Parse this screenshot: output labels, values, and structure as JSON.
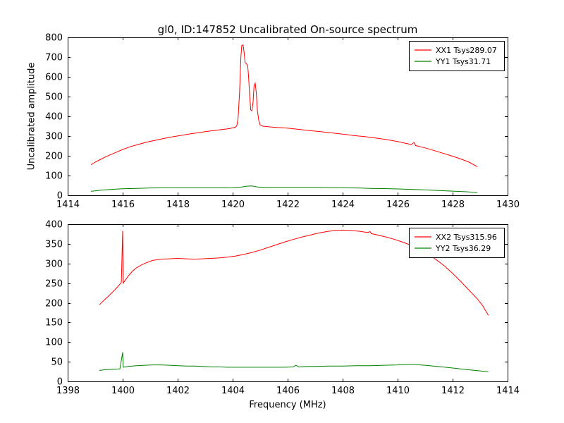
{
  "figure": {
    "title": "gl0, ID:147852 Uncalibrated On-source spectrum",
    "xlabel": "Frequency (MHz)",
    "ylabel": "Uncalibrated amplitude",
    "background_color": "#ffffff",
    "line_colors": {
      "xx": "#ff0000",
      "yy": "#008000"
    }
  },
  "chart_data": [
    {
      "type": "line",
      "name": "top-subplot",
      "title": "gl0, ID:147852 Uncalibrated On-source spectrum",
      "xlabel": "",
      "ylabel": "Uncalibrated amplitude",
      "xlim": [
        1414,
        1430
      ],
      "ylim": [
        0,
        800
      ],
      "xticks": [
        1414,
        1416,
        1418,
        1420,
        1422,
        1424,
        1426,
        1428,
        1430
      ],
      "yticks": [
        0,
        100,
        200,
        300,
        400,
        500,
        600,
        700,
        800
      ],
      "grid": false,
      "legend": {
        "position": "upper right"
      },
      "series": [
        {
          "name": "XX1 Tsys289.07",
          "color": "#ff0000",
          "points": [
            [
              1414.85,
              155
            ],
            [
              1415.0,
              168
            ],
            [
              1415.2,
              182
            ],
            [
              1415.4,
              196
            ],
            [
              1415.6,
              208
            ],
            [
              1415.8,
              220
            ],
            [
              1416.0,
              232
            ],
            [
              1416.3,
              247
            ],
            [
              1416.6,
              259
            ],
            [
              1416.9,
              270
            ],
            [
              1417.2,
              279
            ],
            [
              1417.5,
              288
            ],
            [
              1417.8,
              296
            ],
            [
              1418.1,
              303
            ],
            [
              1418.4,
              310
            ],
            [
              1418.7,
              316
            ],
            [
              1419.0,
              322
            ],
            [
              1419.3,
              328
            ],
            [
              1419.6,
              333
            ],
            [
              1419.9,
              338
            ],
            [
              1420.0,
              342
            ],
            [
              1420.1,
              345
            ],
            [
              1420.15,
              352
            ],
            [
              1420.2,
              395
            ],
            [
              1420.25,
              520
            ],
            [
              1420.3,
              700
            ],
            [
              1420.33,
              758
            ],
            [
              1420.38,
              762
            ],
            [
              1420.42,
              720
            ],
            [
              1420.45,
              672
            ],
            [
              1420.5,
              668
            ],
            [
              1420.55,
              655
            ],
            [
              1420.58,
              600
            ],
            [
              1420.62,
              500
            ],
            [
              1420.66,
              432
            ],
            [
              1420.7,
              428
            ],
            [
              1420.74,
              470
            ],
            [
              1420.78,
              556
            ],
            [
              1420.82,
              568
            ],
            [
              1420.86,
              520
            ],
            [
              1420.9,
              430
            ],
            [
              1420.95,
              378
            ],
            [
              1421.0,
              356
            ],
            [
              1421.1,
              350
            ],
            [
              1421.3,
              347
            ],
            [
              1421.6,
              344
            ],
            [
              1422.0,
              340
            ],
            [
              1422.4,
              334
            ],
            [
              1422.8,
              328
            ],
            [
              1423.2,
              322
            ],
            [
              1423.6,
              316
            ],
            [
              1424.0,
              310
            ],
            [
              1424.4,
              303
            ],
            [
              1424.8,
              297
            ],
            [
              1425.2,
              290
            ],
            [
              1425.6,
              282
            ],
            [
              1426.0,
              272
            ],
            [
              1426.3,
              263
            ],
            [
              1426.5,
              257
            ],
            [
              1426.6,
              268
            ],
            [
              1426.65,
              252
            ],
            [
              1426.8,
              247
            ],
            [
              1427.0,
              240
            ],
            [
              1427.3,
              228
            ],
            [
              1427.6,
              215
            ],
            [
              1428.0,
              198
            ],
            [
              1428.3,
              184
            ],
            [
              1428.6,
              168
            ],
            [
              1428.9,
              145
            ]
          ]
        },
        {
          "name": "YY1 Tsys31.71",
          "color": "#008000",
          "points": [
            [
              1414.85,
              20
            ],
            [
              1415.2,
              26
            ],
            [
              1415.6,
              30
            ],
            [
              1416.0,
              33
            ],
            [
              1416.5,
              35
            ],
            [
              1417.0,
              37
            ],
            [
              1417.5,
              38
            ],
            [
              1418.0,
              38
            ],
            [
              1418.5,
              38
            ],
            [
              1419.0,
              38
            ],
            [
              1419.5,
              38
            ],
            [
              1420.0,
              39
            ],
            [
              1420.3,
              41
            ],
            [
              1420.5,
              46
            ],
            [
              1420.7,
              47
            ],
            [
              1420.9,
              42
            ],
            [
              1421.1,
              40
            ],
            [
              1421.5,
              40
            ],
            [
              1422.0,
              40
            ],
            [
              1422.5,
              40
            ],
            [
              1423.0,
              40
            ],
            [
              1423.5,
              39
            ],
            [
              1424.0,
              38
            ],
            [
              1424.5,
              37
            ],
            [
              1425.0,
              35
            ],
            [
              1425.5,
              34
            ],
            [
              1426.0,
              32
            ],
            [
              1426.5,
              30
            ],
            [
              1427.0,
              27
            ],
            [
              1427.5,
              24
            ],
            [
              1428.0,
              21
            ],
            [
              1428.5,
              18
            ],
            [
              1428.9,
              14
            ]
          ]
        }
      ]
    },
    {
      "type": "line",
      "name": "bottom-subplot",
      "title": "",
      "xlabel": "Frequency (MHz)",
      "ylabel": "",
      "xlim": [
        1398,
        1414
      ],
      "ylim": [
        0,
        400
      ],
      "xticks": [
        1398,
        1400,
        1402,
        1404,
        1406,
        1408,
        1410,
        1412,
        1414
      ],
      "yticks": [
        0,
        50,
        100,
        150,
        200,
        250,
        300,
        350,
        400
      ],
      "grid": false,
      "legend": {
        "position": "upper right"
      },
      "series": [
        {
          "name": "XX2 Tsys315.96",
          "color": "#ff0000",
          "points": [
            [
              1399.15,
              195
            ],
            [
              1399.3,
              205
            ],
            [
              1399.5,
              218
            ],
            [
              1399.7,
              232
            ],
            [
              1399.85,
              243
            ],
            [
              1399.95,
              252
            ],
            [
              1400.0,
              383
            ],
            [
              1400.02,
              250
            ],
            [
              1400.1,
              258
            ],
            [
              1400.2,
              268
            ],
            [
              1400.35,
              280
            ],
            [
              1400.5,
              289
            ],
            [
              1400.7,
              297
            ],
            [
              1400.9,
              303
            ],
            [
              1401.1,
              308
            ],
            [
              1401.4,
              311
            ],
            [
              1401.7,
              312
            ],
            [
              1402.0,
              313
            ],
            [
              1402.3,
              312
            ],
            [
              1402.6,
              311
            ],
            [
              1402.9,
              312
            ],
            [
              1403.2,
              313
            ],
            [
              1403.5,
              314
            ],
            [
              1403.8,
              316
            ],
            [
              1404.1,
              319
            ],
            [
              1404.4,
              323
            ],
            [
              1404.7,
              328
            ],
            [
              1405.0,
              334
            ],
            [
              1405.3,
              341
            ],
            [
              1405.6,
              348
            ],
            [
              1405.9,
              355
            ],
            [
              1406.2,
              361
            ],
            [
              1406.5,
              367
            ],
            [
              1406.8,
              372
            ],
            [
              1407.1,
              377
            ],
            [
              1407.4,
              381
            ],
            [
              1407.7,
              384
            ],
            [
              1408.0,
              385
            ],
            [
              1408.3,
              384
            ],
            [
              1408.6,
              382
            ],
            [
              1408.9,
              379
            ],
            [
              1409.0,
              381
            ],
            [
              1409.05,
              376
            ],
            [
              1409.3,
              372
            ],
            [
              1409.6,
              367
            ],
            [
              1409.9,
              361
            ],
            [
              1410.2,
              354
            ],
            [
              1410.5,
              346
            ],
            [
              1410.8,
              336
            ],
            [
              1411.1,
              324
            ],
            [
              1411.4,
              310
            ],
            [
              1411.7,
              294
            ],
            [
              1412.0,
              275
            ],
            [
              1412.3,
              254
            ],
            [
              1412.6,
              232
            ],
            [
              1412.9,
              210
            ],
            [
              1413.1,
              192
            ],
            [
              1413.3,
              168
            ]
          ]
        },
        {
          "name": "YY2 Tsys36.29",
          "color": "#008000",
          "points": [
            [
              1399.15,
              28
            ],
            [
              1399.4,
              30
            ],
            [
              1399.7,
              31
            ],
            [
              1399.9,
              32
            ],
            [
              1400.0,
              74
            ],
            [
              1400.02,
              36
            ],
            [
              1400.2,
              38
            ],
            [
              1400.5,
              40
            ],
            [
              1400.8,
              41
            ],
            [
              1401.1,
              42
            ],
            [
              1401.4,
              42
            ],
            [
              1401.7,
              41
            ],
            [
              1402.0,
              40
            ],
            [
              1402.3,
              39
            ],
            [
              1402.6,
              39
            ],
            [
              1402.9,
              38
            ],
            [
              1403.2,
              37
            ],
            [
              1403.5,
              37
            ],
            [
              1403.8,
              36
            ],
            [
              1404.1,
              36
            ],
            [
              1404.4,
              36
            ],
            [
              1404.7,
              36
            ],
            [
              1405.0,
              36
            ],
            [
              1405.3,
              36
            ],
            [
              1405.6,
              36
            ],
            [
              1405.9,
              36
            ],
            [
              1406.2,
              37
            ],
            [
              1406.3,
              41
            ],
            [
              1406.4,
              37
            ],
            [
              1406.7,
              38
            ],
            [
              1407.0,
              38
            ],
            [
              1407.5,
              39
            ],
            [
              1408.0,
              39
            ],
            [
              1408.5,
              40
            ],
            [
              1409.0,
              40
            ],
            [
              1409.5,
              41
            ],
            [
              1410.0,
              42
            ],
            [
              1410.3,
              43
            ],
            [
              1410.6,
              43
            ],
            [
              1411.0,
              41
            ],
            [
              1411.3,
              39
            ],
            [
              1411.6,
              37
            ],
            [
              1412.0,
              34
            ],
            [
              1412.4,
              31
            ],
            [
              1412.8,
              28
            ],
            [
              1413.1,
              26
            ],
            [
              1413.3,
              24
            ]
          ]
        }
      ]
    }
  ]
}
